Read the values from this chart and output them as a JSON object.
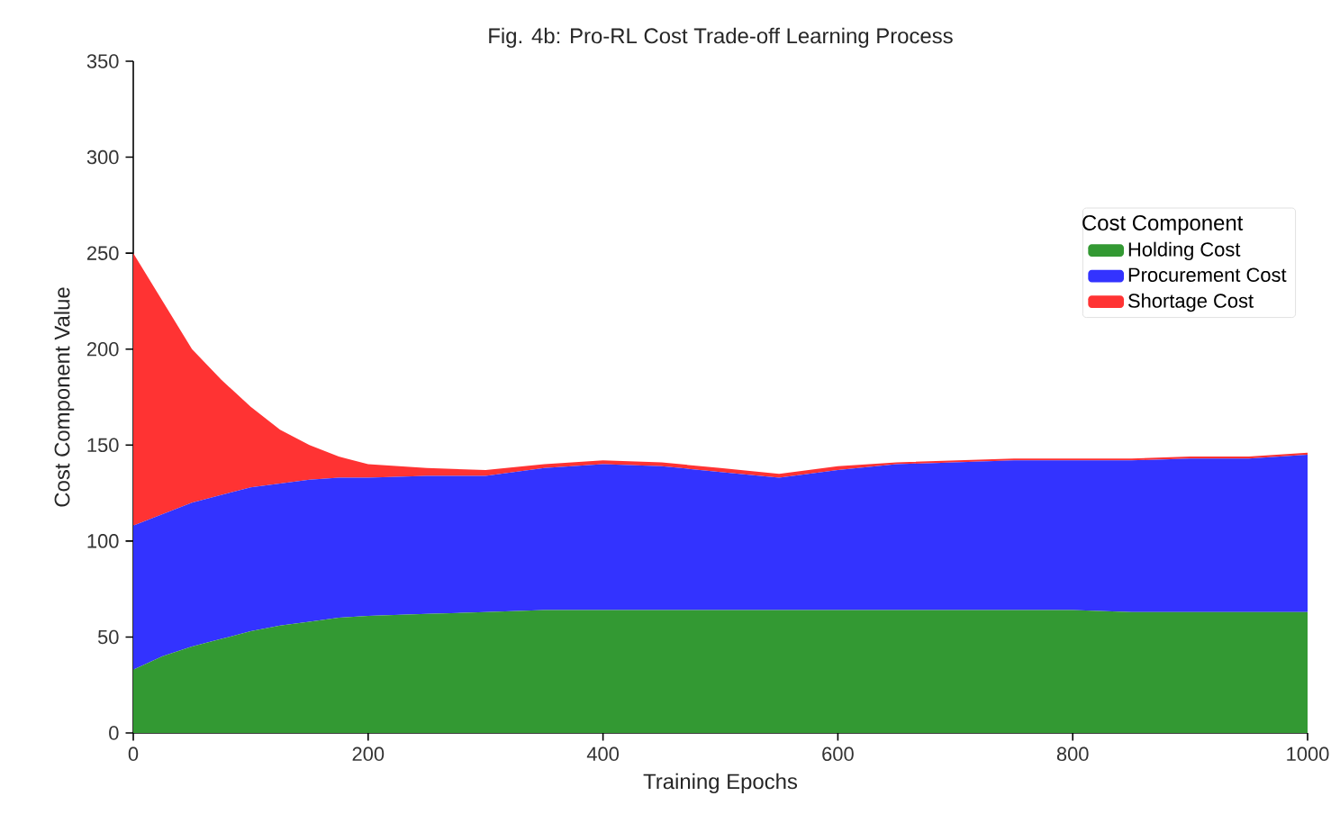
{
  "chart_data": {
    "type": "area",
    "stacked": true,
    "title": "Fig. 4b: Pro-RL Cost Trade-off Learning Process",
    "xlabel": "Training Epochs",
    "ylabel": "Cost Component Value",
    "legend_title": "Cost Component",
    "legend": "right",
    "grid": false,
    "x": [
      0,
      25,
      50,
      75,
      100,
      125,
      150,
      175,
      200,
      250,
      300,
      350,
      400,
      450,
      500,
      550,
      600,
      650,
      700,
      750,
      800,
      850,
      900,
      950,
      1000
    ],
    "xlim": [
      0,
      1000
    ],
    "xticks": [
      0,
      200,
      400,
      600,
      800,
      1000
    ],
    "ylim": [
      0,
      350
    ],
    "yticks": [
      0,
      50,
      100,
      150,
      200,
      250,
      300,
      350
    ],
    "series": [
      {
        "name": "Holding Cost",
        "color": "#339933",
        "values": [
          33,
          40,
          45,
          49,
          53,
          56,
          58,
          60,
          61,
          62,
          63,
          64,
          64,
          64,
          64,
          64,
          64,
          64,
          64,
          64,
          64,
          63,
          63,
          63,
          63
        ]
      },
      {
        "name": "Procurement Cost",
        "color": "#3333ff",
        "values": [
          75,
          74,
          75,
          75,
          75,
          74,
          74,
          73,
          72,
          72,
          71,
          74,
          76,
          75,
          72,
          69,
          73,
          76,
          77,
          78,
          78,
          79,
          80,
          80,
          82
        ]
      },
      {
        "name": "Shortage Cost",
        "color": "#ff3333",
        "values": [
          142,
          111,
          80,
          60,
          42,
          28,
          18,
          11,
          7,
          4,
          3,
          2,
          2,
          2,
          2,
          2,
          2,
          1,
          1,
          1,
          1,
          1,
          1,
          1,
          1
        ]
      }
    ]
  }
}
